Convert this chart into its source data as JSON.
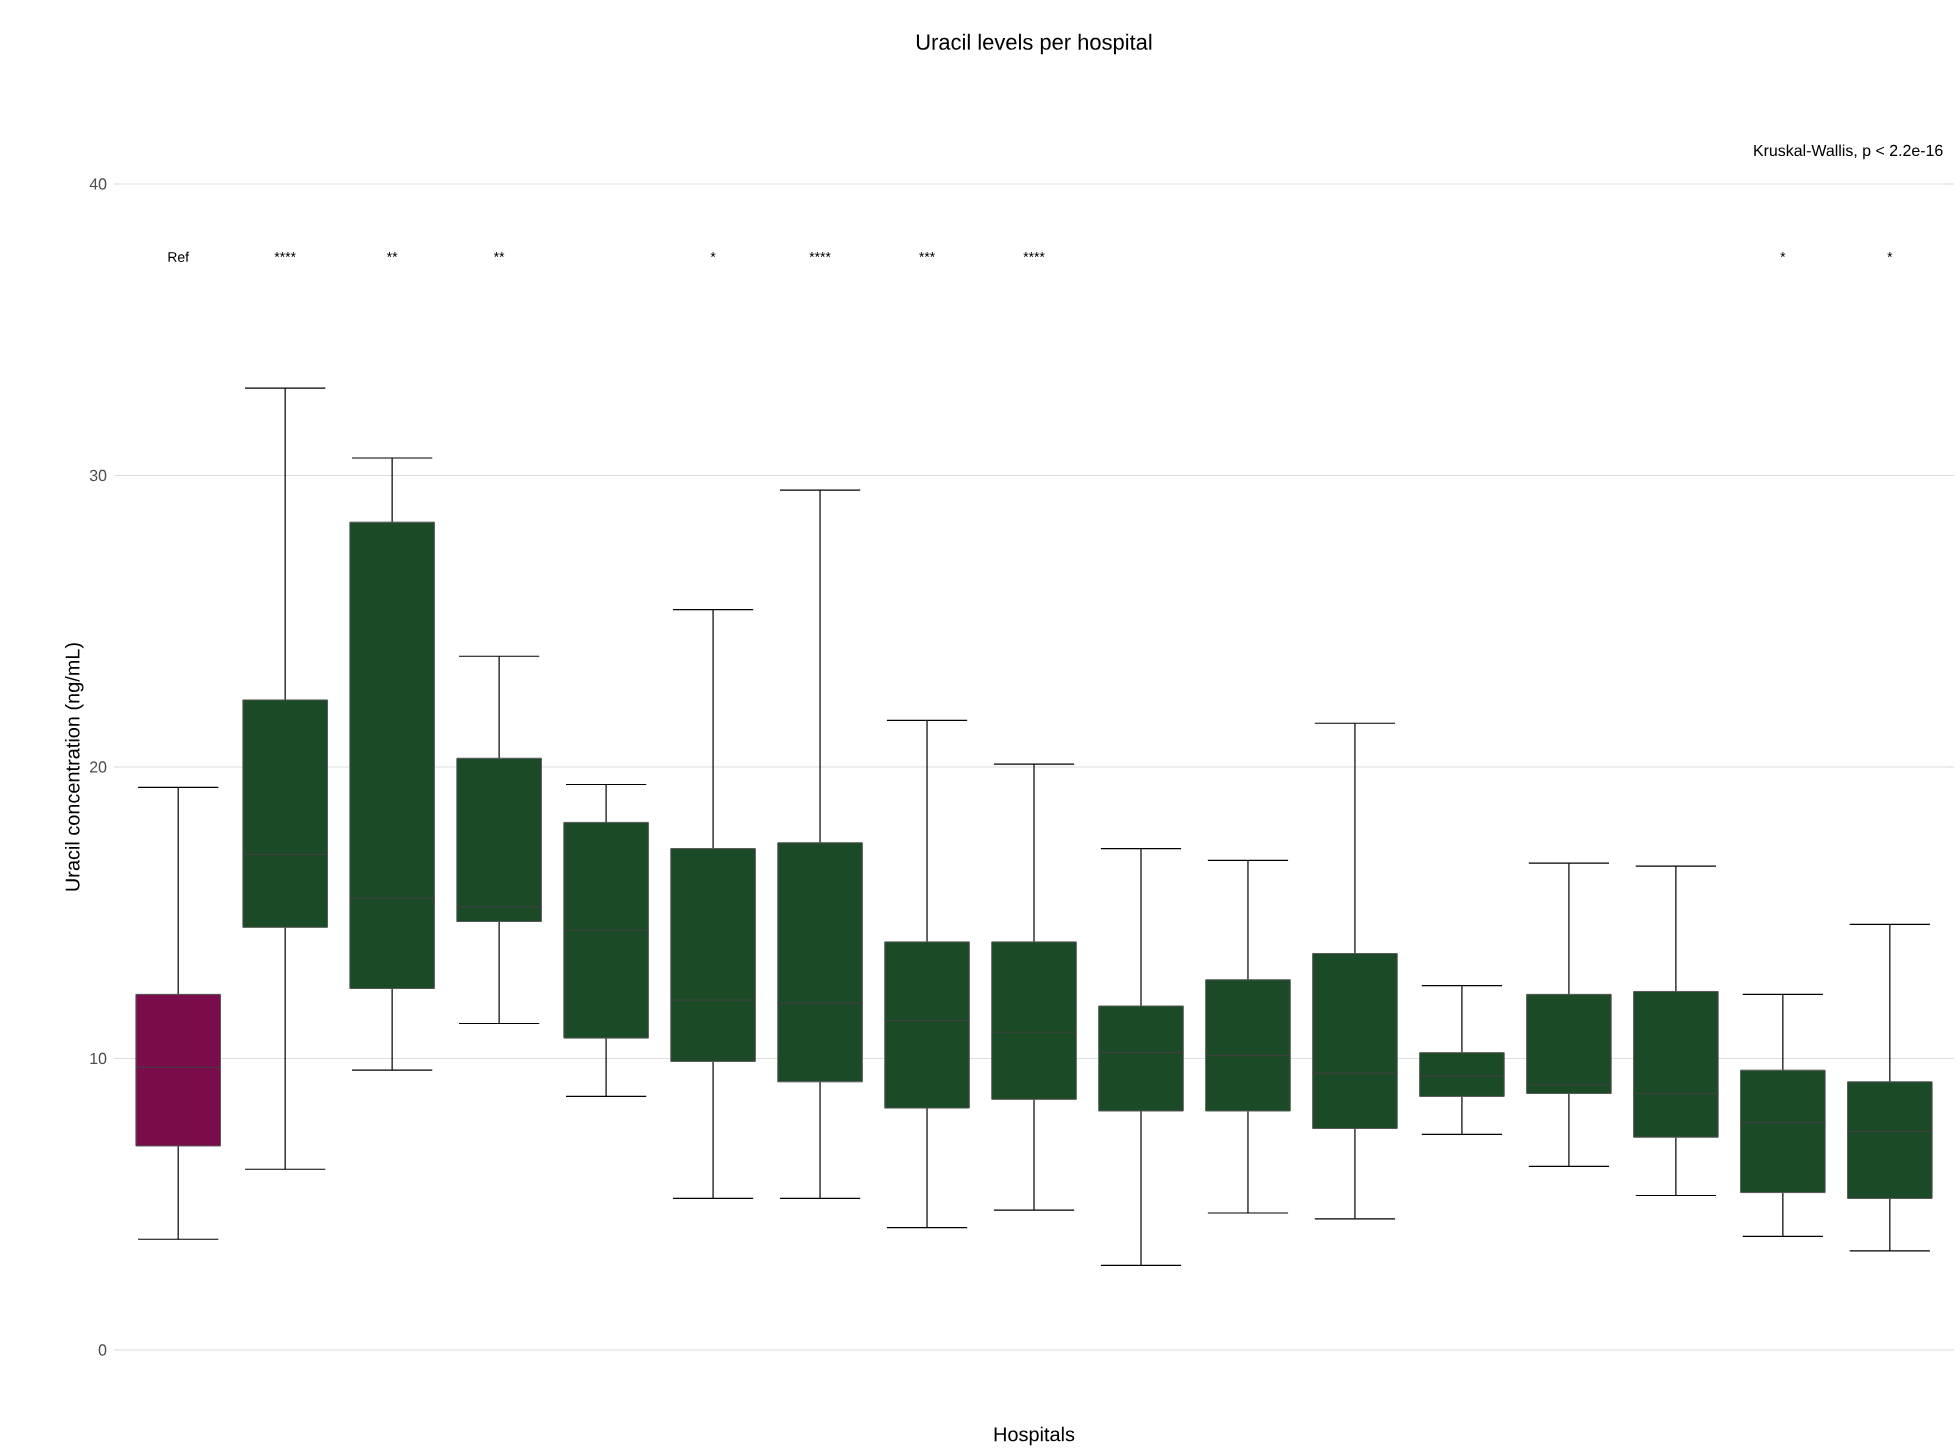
{
  "chart_data": {
    "type": "box",
    "title": "Uracil levels per hospital",
    "xlabel": "Hospitals",
    "ylabel": "Uracil concentration (ng/mL)",
    "categories": [
      null,
      null,
      null,
      null,
      null,
      null,
      null,
      null,
      null,
      null,
      null,
      null,
      null,
      null,
      null,
      null,
      null
    ],
    "colors": [
      "#7b0c4b",
      "#1b4a26",
      "#1b4a26",
      "#1b4a26",
      "#1b4a26",
      "#1b4a26",
      "#1b4a26",
      "#1b4a26",
      "#1b4a26",
      "#1b4a26",
      "#1b4a26",
      "#1b4a26",
      "#1b4a26",
      "#1b4a26",
      "#1b4a26",
      "#1b4a26",
      "#1b4a26"
    ],
    "boxes": [
      {
        "low": 3.8,
        "q1": 7.0,
        "median": 9.7,
        "q3": 12.2,
        "high": 19.3
      },
      {
        "low": 6.2,
        "q1": 14.5,
        "median": 17.0,
        "q3": 22.3,
        "high": 33.0
      },
      {
        "low": 9.6,
        "q1": 12.4,
        "median": 15.5,
        "q3": 28.4,
        "high": 30.6
      },
      {
        "low": 11.2,
        "q1": 14.7,
        "median": 15.2,
        "q3": 20.3,
        "high": 23.8
      },
      {
        "low": 8.7,
        "q1": 10.7,
        "median": 14.4,
        "q3": 18.1,
        "high": 19.4
      },
      {
        "low": 5.2,
        "q1": 9.9,
        "median": 12.0,
        "q3": 17.2,
        "high": 25.4
      },
      {
        "low": 5.2,
        "q1": 9.2,
        "median": 11.9,
        "q3": 17.4,
        "high": 29.5
      },
      {
        "low": 4.2,
        "q1": 8.3,
        "median": 11.3,
        "q3": 14.0,
        "high": 21.6
      },
      {
        "low": 4.8,
        "q1": 8.6,
        "median": 10.9,
        "q3": 14.0,
        "high": 20.1
      },
      {
        "low": 2.9,
        "q1": 8.2,
        "median": 10.2,
        "q3": 11.8,
        "high": 17.2
      },
      {
        "low": 4.7,
        "q1": 8.2,
        "median": 10.1,
        "q3": 12.7,
        "high": 16.8
      },
      {
        "low": 4.5,
        "q1": 7.6,
        "median": 9.5,
        "q3": 13.6,
        "high": 21.5
      },
      {
        "low": 7.4,
        "q1": 8.7,
        "median": 9.4,
        "q3": 10.2,
        "high": 12.5
      },
      {
        "low": 6.3,
        "q1": 8.8,
        "median": 9.1,
        "q3": 12.2,
        "high": 16.7
      },
      {
        "low": 5.3,
        "q1": 7.3,
        "median": 8.8,
        "q3": 12.3,
        "high": 16.6
      },
      {
        "low": 3.9,
        "q1": 5.4,
        "median": 7.8,
        "q3": 9.6,
        "high": 12.2
      },
      {
        "low": 3.4,
        "q1": 5.2,
        "median": 7.5,
        "q3": 9.2,
        "high": 14.6
      }
    ],
    "value_labels": [
      "Ref",
      "****",
      "**",
      "**",
      null,
      "*",
      "****",
      "***",
      "****",
      null,
      null,
      null,
      null,
      null,
      null,
      "*",
      "*"
    ],
    "annotations": [
      "Kruskal-Wallis, p < 2.2e-16"
    ],
    "ylim": [
      0,
      40
    ],
    "yticks": [
      0,
      10,
      20,
      30,
      40
    ],
    "grid": "y",
    "tick_labels": "y"
  }
}
